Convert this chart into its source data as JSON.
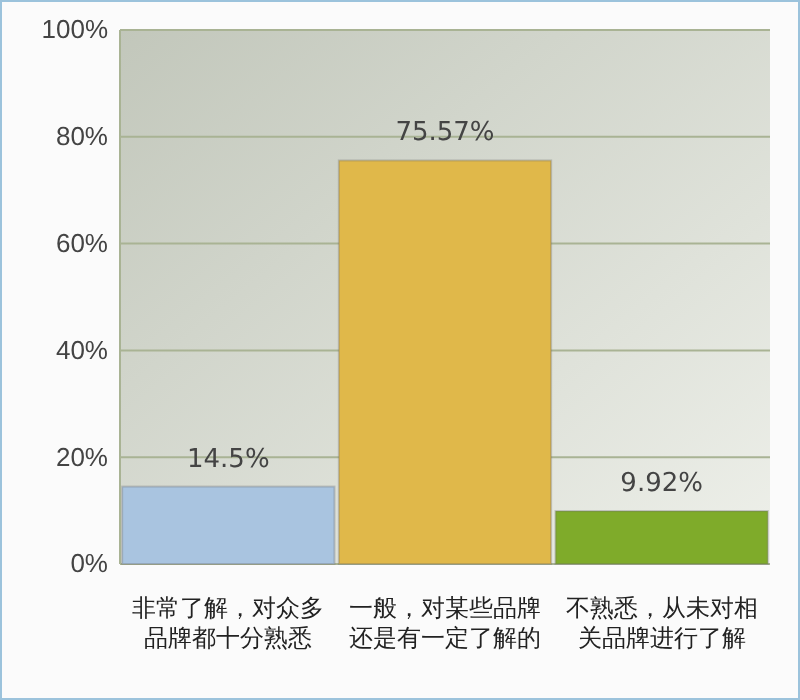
{
  "chart_data": {
    "type": "bar",
    "categories": [
      "非常了解，对众多品牌都十分熟悉",
      "一般，对某些品牌还是有一定了解的",
      "不熟悉，从未对相关品牌进行了解"
    ],
    "values": [
      14.5,
      75.57,
      9.92
    ],
    "colors": [
      "#a9c4e0",
      "#e0b84a",
      "#7fab2a"
    ],
    "value_labels": [
      "14.5%",
      "75.57%",
      "9.92%"
    ],
    "ylim": [
      0,
      100
    ],
    "yticks": [
      {
        "value": 0,
        "label": "0%"
      },
      {
        "value": 20,
        "label": "20%"
      },
      {
        "value": 40,
        "label": "40%"
      },
      {
        "value": 60,
        "label": "60%"
      },
      {
        "value": 80,
        "label": "80%"
      },
      {
        "value": 100,
        "label": "100%"
      }
    ],
    "grid": "y"
  }
}
